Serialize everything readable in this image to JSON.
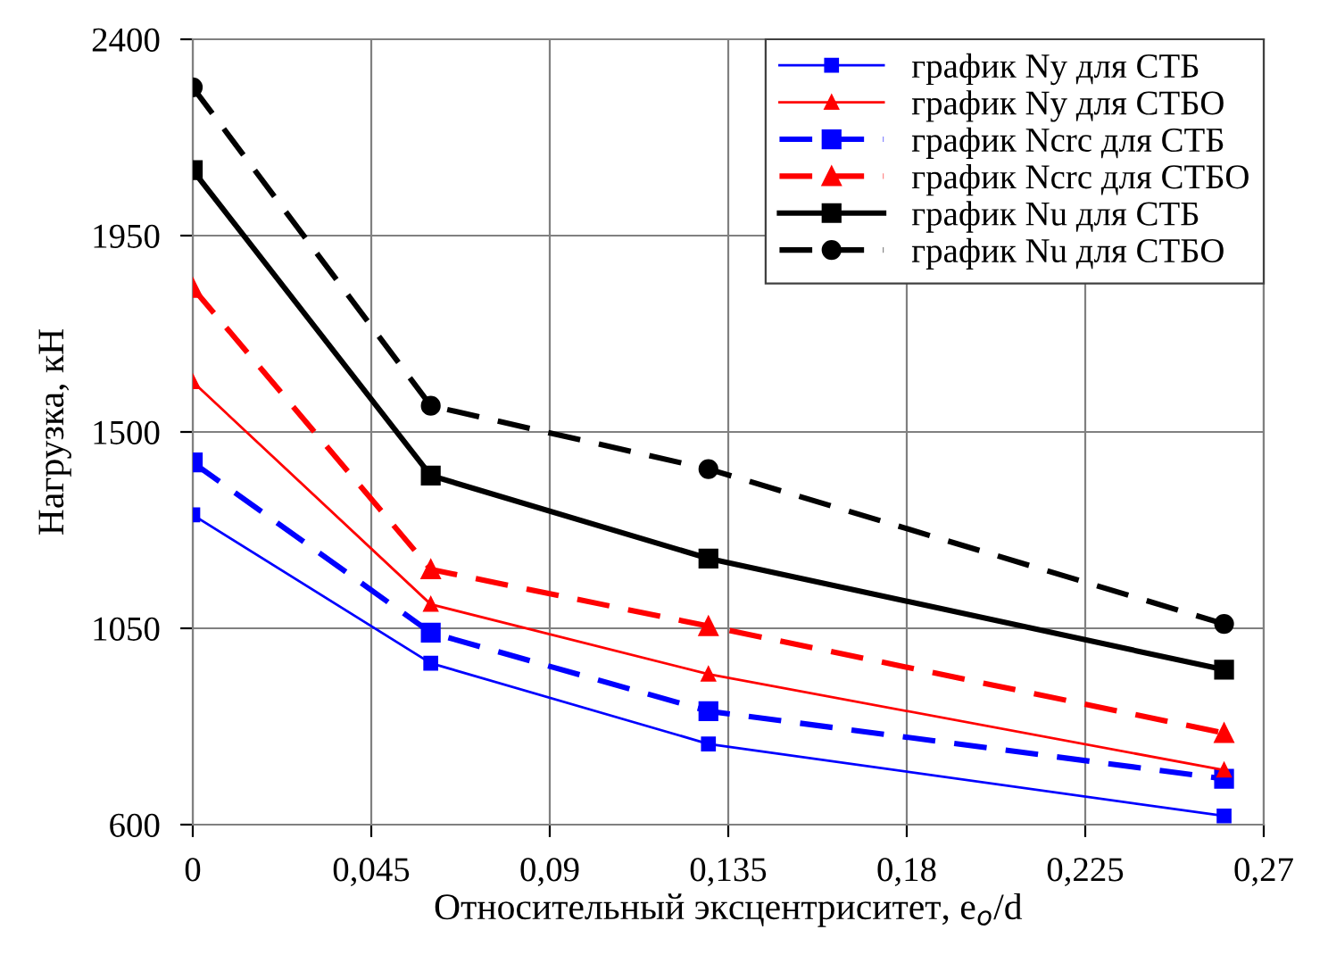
{
  "chart_data": {
    "type": "line",
    "xlabel": "Относительный эксцентриситет, e$_{o}$/d",
    "ylabel": "Нагрузка, кН",
    "x": [
      0,
      0.06,
      0.13,
      0.26
    ],
    "series": [
      {
        "name": "график Ny для СТБ",
        "color": "#0000ff",
        "marker": "square",
        "line_style": "solid",
        "values": [
          1310,
          970,
          785,
          620
        ]
      },
      {
        "name": "график Ny для СТБО",
        "color": "#ff0000",
        "marker": "triangle",
        "line_style": "solid",
        "values": [
          1615,
          1105,
          945,
          725
        ]
      },
      {
        "name": "график Ncrc для СТБ",
        "color": "#0000ff",
        "marker": "square",
        "line_style": "dashed",
        "values": [
          1430,
          1040,
          860,
          705
        ]
      },
      {
        "name": "график Ncrc для СТБО",
        "color": "#ff0000",
        "marker": "triangle",
        "line_style": "dashed",
        "values": [
          1830,
          1185,
          1055,
          810
        ]
      },
      {
        "name": "график Nu для СТБ",
        "color": "#000000",
        "marker": "square",
        "line_style": "solid",
        "values": [
          2100,
          1400,
          1210,
          955
        ]
      },
      {
        "name": "график Nu для СТБО",
        "color": "#000000",
        "marker": "circle",
        "line_style": "dashed",
        "values": [
          2290,
          1560,
          1415,
          1060
        ]
      }
    ],
    "xlim": [
      0,
      0.27
    ],
    "xticks": [
      0,
      {
        "value": 0.045,
        "label": "0,045"
      },
      {
        "value": 0.09,
        "label": "0,09"
      },
      {
        "value": 0.135,
        "label": "0,135"
      },
      {
        "value": 0.18,
        "label": "0,18"
      },
      {
        "value": 0.225,
        "label": "0,225"
      },
      {
        "value": 0.27,
        "label": "0,27"
      }
    ],
    "ylim": [
      600,
      2400
    ],
    "yticks": [
      600,
      1050,
      1500,
      1950,
      2400
    ],
    "grid": true,
    "legend": "top right"
  }
}
